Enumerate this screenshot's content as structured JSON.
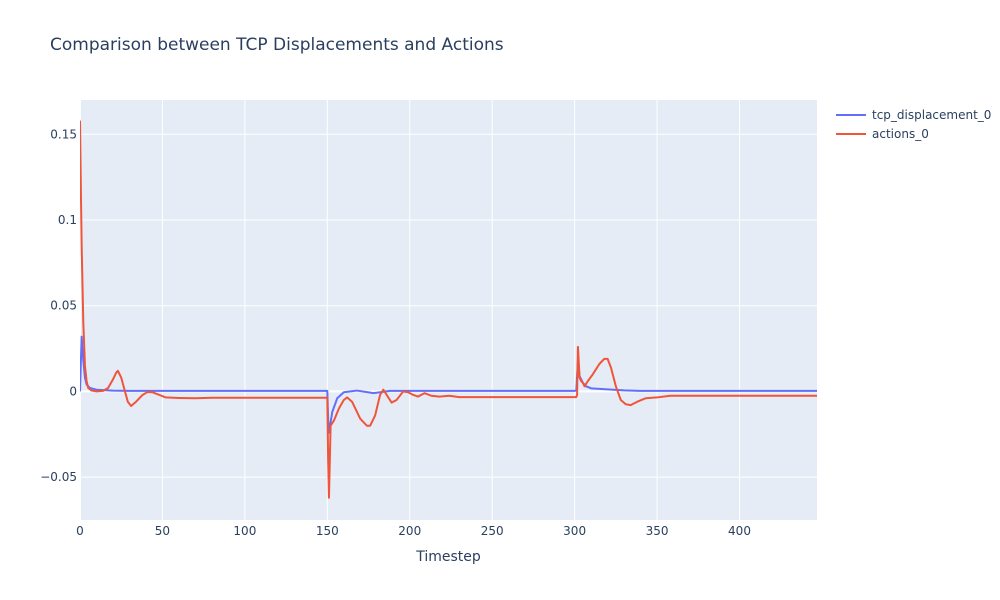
{
  "chart_data": {
    "type": "line",
    "title": "Comparison between TCP Displacements and Actions",
    "xlabel": "Timestep",
    "ylabel": "",
    "xlim": [
      0,
      447
    ],
    "ylim": [
      -0.075,
      0.17
    ],
    "x_ticks": [
      {
        "value": 0,
        "label": "0"
      },
      {
        "value": 50,
        "label": "50"
      },
      {
        "value": 100,
        "label": "100"
      },
      {
        "value": 150,
        "label": "150"
      },
      {
        "value": 200,
        "label": "200"
      },
      {
        "value": 250,
        "label": "250"
      },
      {
        "value": 300,
        "label": "300"
      },
      {
        "value": 350,
        "label": "350"
      },
      {
        "value": 400,
        "label": "400"
      }
    ],
    "y_ticks": [
      {
        "value": -0.05,
        "label": "−0.05"
      },
      {
        "value": 0,
        "label": "0"
      },
      {
        "value": 0.05,
        "label": "0.05"
      },
      {
        "value": 0.1,
        "label": "0.1"
      },
      {
        "value": 0.15,
        "label": "0.15"
      }
    ],
    "grid": true,
    "legend_position": "top-right",
    "background_color": "#E5ECF6",
    "series": [
      {
        "name": "tcp_displacement_0",
        "color": "#636EFA",
        "points": [
          [
            0,
            0
          ],
          [
            1,
            0.032
          ],
          [
            2,
            0.018
          ],
          [
            3,
            0.008
          ],
          [
            4,
            0.004
          ],
          [
            6,
            0.002
          ],
          [
            10,
            0.001
          ],
          [
            20,
            0.0005
          ],
          [
            30,
            0.0003
          ],
          [
            150,
            0.0003
          ],
          [
            150.5,
            -0.016
          ],
          [
            151,
            -0.024
          ],
          [
            153,
            -0.012
          ],
          [
            156,
            -0.004
          ],
          [
            160,
            -0.0005
          ],
          [
            168,
            0.0005
          ],
          [
            178,
            -0.001
          ],
          [
            188,
            0.0003
          ],
          [
            300,
            0.0003
          ],
          [
            301,
            0.0005
          ],
          [
            302,
            0.018
          ],
          [
            303,
            0.009
          ],
          [
            305,
            0.005
          ],
          [
            307,
            0.003
          ],
          [
            310,
            0.0018
          ],
          [
            320,
            0.0012
          ],
          [
            330,
            0.0006
          ],
          [
            340,
            0.0003
          ],
          [
            447,
            0.0003
          ]
        ]
      },
      {
        "name": "actions_0",
        "color": "#EF553B",
        "points": [
          [
            0,
            0.158
          ],
          [
            0.5,
            0.12
          ],
          [
            1,
            0.085
          ],
          [
            2,
            0.04
          ],
          [
            3,
            0.015
          ],
          [
            4,
            0.006
          ],
          [
            5,
            0.002
          ],
          [
            7,
            0.0005
          ],
          [
            10,
            0
          ],
          [
            14,
            0.0003
          ],
          [
            17,
            0.002
          ],
          [
            20,
            0.007
          ],
          [
            22,
            0.011
          ],
          [
            23,
            0.012
          ],
          [
            25,
            0.008
          ],
          [
            27,
            0.001
          ],
          [
            29,
            -0.006
          ],
          [
            31,
            -0.0085
          ],
          [
            34,
            -0.006
          ],
          [
            38,
            -0.002
          ],
          [
            41,
            -0.0003
          ],
          [
            44,
            -0.0005
          ],
          [
            48,
            -0.002
          ],
          [
            52,
            -0.0035
          ],
          [
            60,
            -0.0038
          ],
          [
            70,
            -0.004
          ],
          [
            80,
            -0.0037
          ],
          [
            100,
            -0.0037
          ],
          [
            150,
            -0.0037
          ],
          [
            150.5,
            -0.04
          ],
          [
            151,
            -0.062
          ],
          [
            152,
            -0.02
          ],
          [
            154,
            -0.017
          ],
          [
            157,
            -0.01
          ],
          [
            160,
            -0.005
          ],
          [
            162,
            -0.0035
          ],
          [
            165,
            -0.006
          ],
          [
            170,
            -0.016
          ],
          [
            174,
            -0.02
          ],
          [
            176,
            -0.02
          ],
          [
            179,
            -0.014
          ],
          [
            182,
            -0.002
          ],
          [
            184,
            0.001
          ],
          [
            186,
            -0.002
          ],
          [
            189,
            -0.0065
          ],
          [
            192,
            -0.005
          ],
          [
            196,
            0
          ],
          [
            199,
            -0.0005
          ],
          [
            202,
            -0.002
          ],
          [
            205,
            -0.003
          ],
          [
            209,
            -0.001
          ],
          [
            213,
            -0.0025
          ],
          [
            218,
            -0.003
          ],
          [
            224,
            -0.0025
          ],
          [
            230,
            -0.0033
          ],
          [
            240,
            -0.0033
          ],
          [
            301,
            -0.0033
          ],
          [
            301.5,
            -0.002
          ],
          [
            302,
            0.026
          ],
          [
            303,
            0.008
          ],
          [
            304,
            0.006
          ],
          [
            305,
            0.005
          ],
          [
            306,
            0.003
          ],
          [
            308,
            0.006
          ],
          [
            311,
            0.01
          ],
          [
            315,
            0.016
          ],
          [
            318,
            0.019
          ],
          [
            320,
            0.019
          ],
          [
            322,
            0.014
          ],
          [
            325,
            0.003
          ],
          [
            328,
            -0.005
          ],
          [
            331,
            -0.0075
          ],
          [
            334,
            -0.008
          ],
          [
            338,
            -0.006
          ],
          [
            343,
            -0.004
          ],
          [
            350,
            -0.0035
          ],
          [
            358,
            -0.0025
          ],
          [
            366,
            -0.0025
          ],
          [
            380,
            -0.0025
          ],
          [
            447,
            -0.0025
          ]
        ]
      }
    ]
  }
}
